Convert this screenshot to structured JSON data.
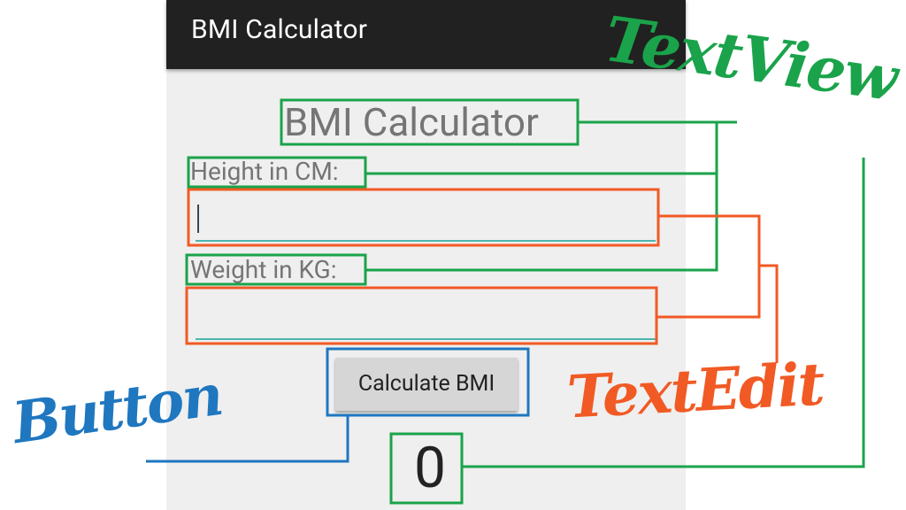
{
  "app": {
    "appbar_title": "BMI Calculator",
    "main_title": "BMI Calculator",
    "height_label": "Height in CM:",
    "height_value": "",
    "weight_label": "Weight in KG:",
    "weight_value": "",
    "calculate_button": "Calculate BMI",
    "result": "0"
  },
  "annotations": {
    "textview": "TextView",
    "textedit": "TextEdit",
    "button": "Button"
  },
  "colors": {
    "textview": "#1aa34a",
    "textedit": "#f15a24",
    "button": "#1f77c0",
    "appbar": "#212121",
    "background": "#efefef"
  }
}
